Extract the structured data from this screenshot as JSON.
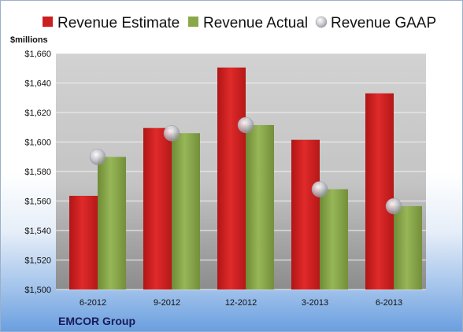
{
  "chart_data": {
    "type": "bar",
    "unit_label": "$millions",
    "footer": "EMCOR Group",
    "categories": [
      "6-2012",
      "9-2012",
      "12-2012",
      "3-2013",
      "6-2013"
    ],
    "series": [
      {
        "name": "Revenue Estimate",
        "color": "#cc1f1f",
        "values": [
          1563.5,
          1609.5,
          1650.5,
          1601.5,
          1633.0
        ]
      },
      {
        "name": "Revenue Actual",
        "color": "#8aa84a",
        "values": [
          1589.9,
          1606.0,
          1611.5,
          1568.0,
          1556.5
        ]
      },
      {
        "name": "Revenue GAAP",
        "values": [
          1589.9,
          1606.0,
          1611.5,
          1568.0,
          1556.5
        ]
      }
    ],
    "ylim": [
      1500,
      1660
    ],
    "yticks": [
      "$1,500",
      "$1,520",
      "$1,540",
      "$1,560",
      "$1,580",
      "$1,600",
      "$1,620",
      "$1,640",
      "$1,660"
    ],
    "grid": true,
    "legend_position": "top"
  }
}
